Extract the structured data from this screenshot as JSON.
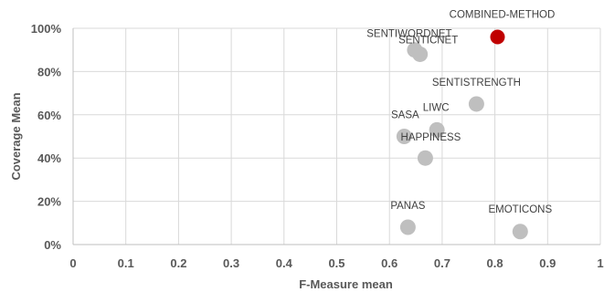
{
  "chart_data": {
    "type": "scatter",
    "xlabel": "F-Measure mean",
    "ylabel": "Coverage Mean",
    "xlim": [
      0,
      1
    ],
    "ylim": [
      0,
      100
    ],
    "x_ticks": [
      0,
      0.1,
      0.2,
      0.3,
      0.4,
      0.5,
      0.6,
      0.7,
      0.8,
      0.9,
      1
    ],
    "x_tick_labels": [
      "0",
      "0.1",
      "0.2",
      "0.3",
      "0.4",
      "0.5",
      "0.6",
      "0.7",
      "0.8",
      "0.9",
      "1"
    ],
    "y_ticks": [
      0,
      20,
      40,
      60,
      80,
      100
    ],
    "y_tick_labels": [
      "0%",
      "20%",
      "40%",
      "60%",
      "80%",
      "100%"
    ],
    "grid": true,
    "colors": {
      "default_point": "#bfbfbf",
      "highlight_point": "#c00000",
      "grid": "#d9d9d9"
    },
    "points": [
      {
        "label": "COMBINED-METHOD",
        "x": 0.805,
        "y": 96,
        "highlight": true
      },
      {
        "label": "SENTIWORDNET",
        "x": 0.648,
        "y": 90,
        "highlight": false
      },
      {
        "label": "SENTICNET",
        "x": 0.658,
        "y": 88,
        "highlight": false
      },
      {
        "label": "SENTISTRENGTH",
        "x": 0.765,
        "y": 65,
        "highlight": false
      },
      {
        "label": "LIWC",
        "x": 0.69,
        "y": 53,
        "highlight": false
      },
      {
        "label": "SASA",
        "x": 0.628,
        "y": 50,
        "highlight": false
      },
      {
        "label": "HAPPINESS",
        "x": 0.668,
        "y": 40,
        "highlight": false
      },
      {
        "label": "PANAS",
        "x": 0.635,
        "y": 8,
        "highlight": false
      },
      {
        "label": "EMOTICONS",
        "x": 0.848,
        "y": 6,
        "highlight": false
      }
    ]
  }
}
